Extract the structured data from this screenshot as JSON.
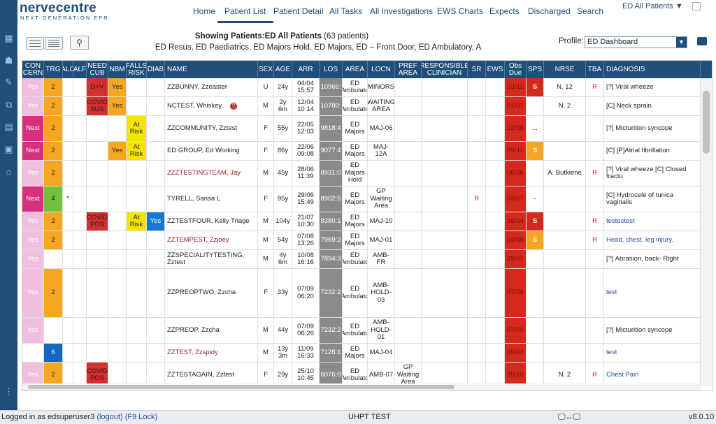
{
  "brand": {
    "name": "nervecentre",
    "tagline": "NEXT GENERATION EPR"
  },
  "nav": {
    "items": [
      "Home",
      "Patient List",
      "Patient Detail",
      "All Tasks",
      "All Investigations",
      "EWS Charts",
      "Expects",
      "Discharged",
      "Search"
    ],
    "active": "Patient List",
    "location_selector": "ED All Patients ▼"
  },
  "header": {
    "title_prefix": "Showing Patients:",
    "title_list": "ED All Patients",
    "count": "(63 patients)",
    "subtitle": "ED Resus, ED Paediatrics, ED Majors Hold, ED Majors, ED – Front Door, ED Ambulatory, A",
    "profile_label": "Profile:",
    "profile_value": "ED Dashboard"
  },
  "columns": [
    "CON CERN",
    "TRG",
    "ALC",
    "ALF",
    "NEED CUB",
    "NBM",
    "FALLS RISK",
    "DIAB",
    "NAME",
    "SEX",
    "AGE",
    "ARR",
    "LOS",
    "AREA",
    "LOCN",
    "PREF AREA",
    "RESPONSIBLE CLINICIAN",
    "SR",
    "EWS",
    "Obs Due",
    "SPS",
    "NRSE",
    "TBA",
    "DIAGNOSIS"
  ],
  "rows": [
    {
      "concern": "Yes",
      "trg": "2",
      "alc": "",
      "alf": "",
      "needcub": "D+V",
      "nbm": "Yes",
      "falls": "",
      "diab": "",
      "name": "ZZBUNNY, Zzeaster",
      "sex": "U",
      "age": "24y",
      "arr": "04/04 15:57",
      "los": "10966:",
      "area": "ED Ambulato",
      "locn": "MINORS",
      "pref": "",
      "clin": "",
      "sr": "",
      "ews": "",
      "obs": "23/11",
      "sps": "S",
      "nrse": "N. 12",
      "tba": "R",
      "diag": "[?] Viral wheeze"
    },
    {
      "concern": "Yes",
      "trg": "2",
      "alc": "",
      "alf": "",
      "needcub": "COVID SUS",
      "nbm": "Yes",
      "falls": "",
      "diab": "",
      "name": "NCTEST, Whiskey",
      "sex": "M",
      "age": "2y 6m",
      "arr": "12/04 10:14",
      "los": "10780:",
      "area": "ED Ambulato",
      "locn": "WAITING AREA",
      "pref": "",
      "clin": "",
      "sr": "",
      "ews": "",
      "obs": "01/07",
      "sps": "",
      "nrse": "N. 2",
      "tba": "",
      "diag": "[C] Neck sprain"
    },
    {
      "concern": "Next",
      "trg": "2",
      "alc": "",
      "alf": "",
      "needcub": "",
      "nbm": "",
      "falls": "At Risk",
      "diab": "",
      "name": "ZZCOMMUNITY, Zztest",
      "sex": "F",
      "age": "55y",
      "arr": "22/05 12:03",
      "los": "9818:4",
      "area": "ED Majors",
      "locn": "MAJ-06",
      "pref": "",
      "clin": "",
      "sr": "",
      "ews": "",
      "obs": "22/06",
      "sps": "...",
      "nrse": "",
      "tba": "",
      "diag": "[?] Micturition syncope"
    },
    {
      "concern": "Next",
      "trg": "2",
      "alc": "",
      "alf": "",
      "needcub": "",
      "nbm": "Yes",
      "falls": "At Risk",
      "diab": "",
      "name": "ED GROUP, Ed Working",
      "sex": "F",
      "age": "86y",
      "arr": "22/06 09:08",
      "los": "9077:4",
      "area": "ED Majors",
      "locn": "MAJ-12A",
      "pref": "",
      "clin": "",
      "sr": "",
      "ews": "",
      "obs": "09/11",
      "sps": "S",
      "nrse": "",
      "tba": "",
      "diag": "[C] [P]Atrial fibrillation"
    },
    {
      "concern": "Yes",
      "trg": "2",
      "alc": "",
      "alf": "",
      "needcub": "",
      "nbm": "",
      "falls": "",
      "diab": "",
      "name": "ZZZTESTINGTEAM, Jay",
      "sex": "M",
      "age": "45y",
      "arr": "28/06 11:39",
      "los": "8931:0",
      "area": "ED Majors Hold",
      "locn": "",
      "pref": "",
      "clin": "",
      "sr": "",
      "ews": "",
      "obs": "06/06",
      "sps": "",
      "nrse": "A. Butkiene",
      "tba": "R",
      "diag": "[?] Viral wheeze [C] Closed fractu"
    },
    {
      "concern": "Next",
      "trg": "4",
      "alc": "*",
      "alf": "",
      "needcub": "",
      "nbm": "",
      "falls": "",
      "diab": "",
      "name": "TYRELL, Sansa L",
      "sex": "F",
      "age": "95y",
      "arr": "29/06 15:49",
      "los": "8902:5",
      "area": "ED Majors",
      "locn": "GP Waiting Area",
      "pref": "",
      "clin": "",
      "sr": "R",
      "ews": "",
      "obs": "03/07",
      "sps": "-",
      "nrse": "",
      "tba": "",
      "diag": "[C] Hydrocele of tunica vaginalis"
    },
    {
      "concern": "Yes",
      "trg": "2",
      "alc": "",
      "alf": "",
      "needcub": "COVID POS",
      "nbm": "",
      "falls": "At Risk",
      "diab": "Yes",
      "name": "ZZTESTFOUR, Kelly Triage",
      "sex": "M",
      "age": "104y",
      "arr": "21/07 10:30",
      "los": "8380:1",
      "area": "ED Majors",
      "locn": "MAJ-10",
      "pref": "",
      "clin": "",
      "sr": "",
      "ews": "",
      "obs": "16/04",
      "sps": "S",
      "nrse": "",
      "tba": "R",
      "diag": "testestest"
    },
    {
      "concern": "Yes",
      "trg": "2",
      "alc": "",
      "alf": "",
      "needcub": "",
      "nbm": "",
      "falls": "",
      "diab": "",
      "name": "ZZTEMPEST, Zzjoey",
      "sex": "M",
      "age": "54y",
      "arr": "07/08 13:26",
      "los": "7969:2",
      "area": "ED Majors",
      "locn": "MAJ-01",
      "pref": "",
      "clin": "",
      "sr": "",
      "ews": "",
      "obs": "24/08",
      "sps": "S",
      "nrse": "",
      "tba": "R",
      "diag": "Head, chest, leg injury."
    },
    {
      "concern": "Yes",
      "trg": "",
      "alc": "",
      "alf": "",
      "needcub": "",
      "nbm": "",
      "falls": "",
      "diab": "",
      "name": "ZZSPECIALITYTESTING, Zztest",
      "sex": "M",
      "age": "4y 6m",
      "arr": "10/08 16:16",
      "los": "7894:3",
      "area": "ED Ambulato",
      "locn": "AMB-FR",
      "pref": "",
      "clin": "",
      "sr": "",
      "ews": "",
      "obs": "29/01",
      "sps": "",
      "nrse": "",
      "tba": "",
      "diag": "[?] Abrasion, back- Right"
    },
    {
      "concern": "Yes",
      "trg": "2",
      "alc": "",
      "alf": "",
      "needcub": "",
      "nbm": "",
      "falls": "",
      "diab": "",
      "name": "ZZPREOPTWO, Zzcha",
      "sex": "F",
      "age": "33y",
      "arr": "07/09 06:20",
      "los": "7232:2",
      "area": "ED Ambulato",
      "locn": "AMB-HOLD-03",
      "pref": "",
      "clin": "",
      "sr": "",
      "ews": "",
      "obs": "07/09",
      "sps": "",
      "nrse": "",
      "tba": "",
      "diag": "test"
    },
    {
      "concern": "Yes",
      "trg": "",
      "alc": "",
      "alf": "",
      "needcub": "",
      "nbm": "",
      "falls": "",
      "diab": "",
      "name": "ZZPREOP, Zzcha",
      "sex": "M",
      "age": "44y",
      "arr": "07/09 06:26",
      "los": "7232:2",
      "area": "ED Ambulato",
      "locn": "AMB-HOLD-01",
      "pref": "",
      "clin": "",
      "sr": "",
      "ews": "",
      "obs": "07/09",
      "sps": "",
      "nrse": "",
      "tba": "",
      "diag": "[?] Micturition syncope"
    },
    {
      "concern": "",
      "trg": "6",
      "alc": "",
      "alf": "",
      "needcub": "",
      "nbm": "",
      "falls": "",
      "diab": "",
      "name": "ZZTEST, Zzspidy",
      "sex": "M",
      "age": "13y 3m",
      "arr": "11/09 16:33",
      "los": "7128:1",
      "area": "ED Majors",
      "locn": "MAJ-04",
      "pref": "",
      "clin": "",
      "sr": "",
      "ews": "",
      "obs": "05/03",
      "sps": "",
      "nrse": "",
      "tba": "",
      "diag": "test"
    },
    {
      "concern": "Yes",
      "trg": "2",
      "alc": "",
      "alf": "",
      "needcub": "COVID POS",
      "nbm": "",
      "falls": "",
      "diab": "",
      "name": "ZZTESTAGAIN, Zztest",
      "sex": "F",
      "age": "29y",
      "arr": "25/10 10:45",
      "los": "6076:0",
      "area": "ED Ambulato",
      "locn": "AMB-07",
      "pref": "GP Waiting Area",
      "clin": "",
      "sr": "",
      "ews": "",
      "obs": "25/10",
      "sps": "",
      "nrse": "N. 2",
      "tba": "R",
      "diag": "Chest Pain"
    }
  ],
  "status": {
    "logged_in_prefix": "Logged in as edsuperuser3",
    "logout": "(logout)",
    "lock": "(F9 Lock)",
    "environment": "UHPT TEST",
    "version": "v8.0.10"
  },
  "colors": {
    "navy": "#1f4e79",
    "concern_yes": "#f0bfdc",
    "concern_next": "#d6307f",
    "trg_orange": "#f5a623",
    "trg_green": "#6fc23a",
    "trg_blue": "#1565c0",
    "needcub_red": "#d32f2f",
    "nbm_orange": "#f5a623",
    "falls_yellow": "#f4e400",
    "diab_blue": "#1976d2",
    "los_grey": "#8a8a8a",
    "obs_red": "#d42a1e",
    "sps_red": "#d42a1e",
    "sps_orange": "#f5a623"
  }
}
